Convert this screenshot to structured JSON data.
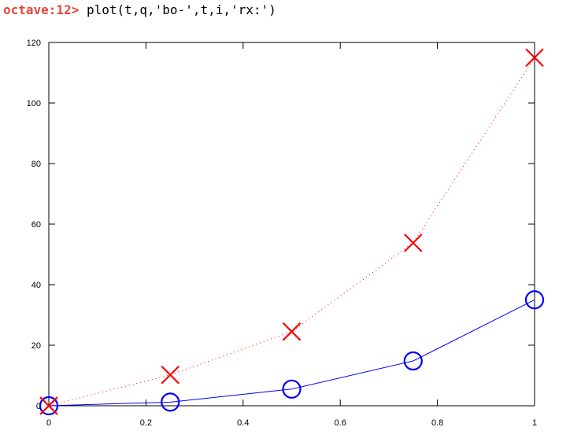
{
  "terminal": {
    "prompt": "octave:12>",
    "command": " plot(t,q,'bo-',t,i,'rx:')"
  },
  "chart_data": {
    "type": "line",
    "x": [
      0,
      0.25,
      0.5,
      0.75,
      1
    ],
    "series": [
      {
        "values": [
          0,
          1.2,
          5.5,
          14.8,
          35
        ],
        "color": "#0000ff",
        "marker": "circle",
        "line_style": "solid"
      },
      {
        "values": [
          0,
          10.2,
          24.5,
          53.8,
          115
        ],
        "color": "#ff0000",
        "marker": "x",
        "line_style": "dotted"
      }
    ],
    "xlim": [
      0,
      1
    ],
    "ylim": [
      0,
      120
    ],
    "xticks": [
      0,
      0.2,
      0.4,
      0.6,
      0.8,
      1
    ],
    "xtick_labels": [
      "0",
      "0.2",
      "0.4",
      "0.6",
      "0.8",
      "1"
    ],
    "yticks": [
      0,
      20,
      40,
      60,
      80,
      100,
      120
    ],
    "ytick_labels": [
      "0",
      "20",
      "40",
      "60",
      "80",
      "100",
      "120"
    ],
    "grid": false,
    "title": "",
    "xlabel": "",
    "ylabel": ""
  }
}
